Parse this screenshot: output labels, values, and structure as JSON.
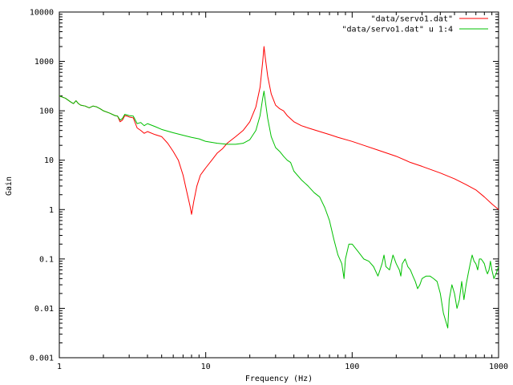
{
  "chart_data": {
    "type": "line",
    "title": "",
    "xlabel": "Frequency (Hz)",
    "ylabel": "Gain",
    "xscale": "log",
    "yscale": "log",
    "xlim": [
      1,
      1000
    ],
    "ylim": [
      0.001,
      10000
    ],
    "x_ticks": [
      "1",
      "10",
      "100",
      "1000"
    ],
    "y_ticks": [
      "0.001",
      "0.01",
      "0.1",
      "1",
      "10",
      "100",
      "1000",
      "10000"
    ],
    "grid": false,
    "legend_position": "top-right",
    "series": [
      {
        "name": "\"data/servo1.dat\"",
        "color": "#ff0000",
        "points": [
          [
            1,
            200
          ],
          [
            1.1,
            180
          ],
          [
            1.2,
            150
          ],
          [
            1.25,
            140
          ],
          [
            1.3,
            160
          ],
          [
            1.35,
            140
          ],
          [
            1.4,
            130
          ],
          [
            1.5,
            125
          ],
          [
            1.6,
            115
          ],
          [
            1.7,
            125
          ],
          [
            1.8,
            120
          ],
          [
            1.9,
            110
          ],
          [
            2,
            100
          ],
          [
            2.2,
            90
          ],
          [
            2.4,
            80
          ],
          [
            2.5,
            78
          ],
          [
            2.6,
            60
          ],
          [
            2.7,
            65
          ],
          [
            2.8,
            80
          ],
          [
            2.9,
            78
          ],
          [
            3,
            75
          ],
          [
            3.2,
            72
          ],
          [
            3.4,
            45
          ],
          [
            3.6,
            40
          ],
          [
            3.8,
            35
          ],
          [
            4,
            38
          ],
          [
            4.5,
            33
          ],
          [
            5,
            30
          ],
          [
            5.5,
            22
          ],
          [
            6,
            15
          ],
          [
            6.5,
            10
          ],
          [
            7,
            5
          ],
          [
            7.5,
            2
          ],
          [
            7.8,
            1.2
          ],
          [
            8,
            0.8
          ],
          [
            8.3,
            1.5
          ],
          [
            8.7,
            3
          ],
          [
            9.2,
            5
          ],
          [
            10,
            7
          ],
          [
            11,
            10
          ],
          [
            12,
            14
          ],
          [
            13,
            17
          ],
          [
            14,
            22
          ],
          [
            16,
            30
          ],
          [
            18,
            40
          ],
          [
            20,
            60
          ],
          [
            22,
            120
          ],
          [
            23.5,
            300
          ],
          [
            24.5,
            1000
          ],
          [
            25,
            2000
          ],
          [
            25.5,
            1200
          ],
          [
            26.5,
            500
          ],
          [
            28,
            220
          ],
          [
            30,
            130
          ],
          [
            32,
            110
          ],
          [
            34,
            100
          ],
          [
            36,
            80
          ],
          [
            40,
            60
          ],
          [
            45,
            50
          ],
          [
            50,
            45
          ],
          [
            60,
            38
          ],
          [
            70,
            33
          ],
          [
            80,
            29
          ],
          [
            100,
            24
          ],
          [
            120,
            20
          ],
          [
            150,
            16
          ],
          [
            200,
            12
          ],
          [
            250,
            9
          ],
          [
            300,
            7.5
          ],
          [
            400,
            5.5
          ],
          [
            500,
            4.2
          ],
          [
            600,
            3.2
          ],
          [
            700,
            2.5
          ],
          [
            800,
            1.8
          ],
          [
            900,
            1.3
          ],
          [
            1000,
            1
          ]
        ]
      },
      {
        "name": "\"data/servo1.dat\" u 1:4",
        "color": "#00c000",
        "points": [
          [
            1,
            200
          ],
          [
            1.1,
            180
          ],
          [
            1.2,
            150
          ],
          [
            1.25,
            140
          ],
          [
            1.3,
            160
          ],
          [
            1.35,
            140
          ],
          [
            1.4,
            130
          ],
          [
            1.5,
            125
          ],
          [
            1.6,
            115
          ],
          [
            1.7,
            125
          ],
          [
            1.8,
            120
          ],
          [
            1.9,
            110
          ],
          [
            2,
            100
          ],
          [
            2.2,
            90
          ],
          [
            2.4,
            80
          ],
          [
            2.5,
            78
          ],
          [
            2.6,
            65
          ],
          [
            2.7,
            70
          ],
          [
            2.8,
            85
          ],
          [
            3,
            80
          ],
          [
            3.2,
            78
          ],
          [
            3.4,
            55
          ],
          [
            3.6,
            58
          ],
          [
            3.8,
            50
          ],
          [
            4,
            55
          ],
          [
            4.5,
            48
          ],
          [
            5,
            42
          ],
          [
            6,
            36
          ],
          [
            7,
            32
          ],
          [
            8,
            29
          ],
          [
            9,
            27
          ],
          [
            10,
            24
          ],
          [
            12,
            22
          ],
          [
            14,
            21
          ],
          [
            16,
            21
          ],
          [
            18,
            22
          ],
          [
            20,
            26
          ],
          [
            22,
            40
          ],
          [
            23.5,
            80
          ],
          [
            24.5,
            180
          ],
          [
            25,
            250
          ],
          [
            25.5,
            160
          ],
          [
            26.5,
            70
          ],
          [
            28,
            30
          ],
          [
            30,
            18
          ],
          [
            32,
            15
          ],
          [
            34,
            12
          ],
          [
            36,
            10
          ],
          [
            38,
            9
          ],
          [
            40,
            6
          ],
          [
            45,
            4
          ],
          [
            50,
            3
          ],
          [
            55,
            2.2
          ],
          [
            60,
            1.8
          ],
          [
            65,
            1.1
          ],
          [
            70,
            0.6
          ],
          [
            75,
            0.25
          ],
          [
            80,
            0.12
          ],
          [
            85,
            0.08
          ],
          [
            88,
            0.04
          ],
          [
            90,
            0.1
          ],
          [
            95,
            0.2
          ],
          [
            100,
            0.2
          ],
          [
            110,
            0.14
          ],
          [
            120,
            0.1
          ],
          [
            130,
            0.09
          ],
          [
            140,
            0.07
          ],
          [
            150,
            0.045
          ],
          [
            155,
            0.06
          ],
          [
            160,
            0.08
          ],
          [
            165,
            0.12
          ],
          [
            170,
            0.07
          ],
          [
            180,
            0.06
          ],
          [
            190,
            0.12
          ],
          [
            200,
            0.08
          ],
          [
            210,
            0.06
          ],
          [
            215,
            0.045
          ],
          [
            220,
            0.08
          ],
          [
            230,
            0.1
          ],
          [
            240,
            0.07
          ],
          [
            250,
            0.06
          ],
          [
            260,
            0.045
          ],
          [
            270,
            0.035
          ],
          [
            280,
            0.025
          ],
          [
            290,
            0.03
          ],
          [
            300,
            0.04
          ],
          [
            320,
            0.045
          ],
          [
            340,
            0.045
          ],
          [
            360,
            0.04
          ],
          [
            380,
            0.035
          ],
          [
            400,
            0.02
          ],
          [
            420,
            0.008
          ],
          [
            440,
            0.005
          ],
          [
            450,
            0.004
          ],
          [
            460,
            0.015
          ],
          [
            480,
            0.03
          ],
          [
            500,
            0.02
          ],
          [
            520,
            0.01
          ],
          [
            540,
            0.015
          ],
          [
            560,
            0.035
          ],
          [
            580,
            0.015
          ],
          [
            600,
            0.03
          ],
          [
            620,
            0.05
          ],
          [
            640,
            0.08
          ],
          [
            660,
            0.12
          ],
          [
            680,
            0.09
          ],
          [
            700,
            0.08
          ],
          [
            720,
            0.06
          ],
          [
            740,
            0.1
          ],
          [
            760,
            0.1
          ],
          [
            780,
            0.09
          ],
          [
            800,
            0.08
          ],
          [
            820,
            0.06
          ],
          [
            840,
            0.05
          ],
          [
            860,
            0.06
          ],
          [
            880,
            0.09
          ],
          [
            900,
            0.06
          ],
          [
            930,
            0.04
          ],
          [
            960,
            0.05
          ],
          [
            1000,
            0.07
          ]
        ]
      }
    ]
  }
}
